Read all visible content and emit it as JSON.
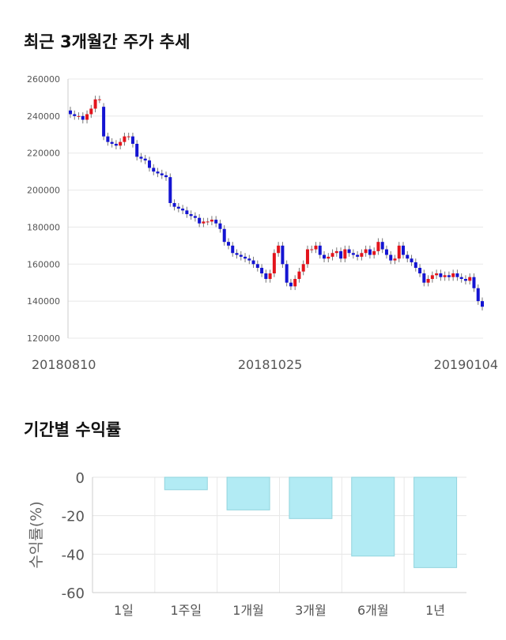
{
  "chart_data": [
    {
      "type": "candlestick",
      "title": "최근 3개월간 주가 추세",
      "categories": [
        "20180810",
        null,
        null,
        null,
        null,
        null,
        null,
        null,
        null,
        null,
        null,
        null,
        null,
        null,
        null,
        null,
        null,
        null,
        null,
        null,
        null,
        null,
        null,
        null,
        null,
        null,
        null,
        null,
        null,
        null,
        null,
        null,
        null,
        null,
        null,
        null,
        null,
        null,
        null,
        null,
        null,
        null,
        null,
        null,
        null,
        null,
        null,
        null,
        "20181025",
        null,
        null,
        null,
        null,
        null,
        null,
        null,
        null,
        null,
        null,
        null,
        null,
        null,
        null,
        null,
        null,
        null,
        null,
        null,
        null,
        null,
        null,
        null,
        null,
        null,
        null,
        null,
        null,
        null,
        null,
        null,
        null,
        null,
        null,
        null,
        null,
        null,
        null,
        null,
        null,
        null,
        null,
        null,
        null,
        null,
        null,
        null,
        null,
        null,
        null,
        "20190104"
      ],
      "open": [
        243000,
        241000,
        240000,
        240000,
        238000,
        241000,
        244000,
        249000,
        245000,
        229000,
        226000,
        225000,
        224000,
        226000,
        229000,
        229000,
        225000,
        218000,
        217000,
        216000,
        212000,
        210000,
        209000,
        208000,
        207000,
        193000,
        191000,
        190000,
        189000,
        187000,
        186000,
        185000,
        182000,
        183000,
        183000,
        184000,
        182000,
        179000,
        172000,
        170000,
        166000,
        165000,
        164000,
        163000,
        162000,
        160000,
        158000,
        155000,
        152000,
        155000,
        166000,
        170000,
        160000,
        150000,
        148000,
        152000,
        156000,
        160000,
        168000,
        168000,
        170000,
        165000,
        163000,
        164000,
        166000,
        167000,
        163000,
        168000,
        166000,
        165000,
        164000,
        166000,
        168000,
        165000,
        167000,
        172000,
        168000,
        165000,
        162000,
        163000,
        170000,
        165000,
        163000,
        161000,
        158000,
        155000,
        150000,
        152000,
        154000,
        155000,
        153000,
        154000,
        153000,
        155000,
        153000,
        152000,
        151000,
        153000,
        147000,
        140000
      ],
      "close": [
        241000,
        240000,
        240000,
        238000,
        241000,
        244000,
        249000,
        249000,
        229000,
        226000,
        225000,
        224000,
        226000,
        229000,
        229000,
        225000,
        218000,
        217000,
        216000,
        212000,
        210000,
        209000,
        208000,
        207000,
        193000,
        191000,
        190000,
        189000,
        187000,
        186000,
        185000,
        182000,
        183000,
        183000,
        184000,
        182000,
        179000,
        172000,
        170000,
        166000,
        165000,
        164000,
        163000,
        162000,
        160000,
        158000,
        155000,
        152000,
        155000,
        166000,
        170000,
        160000,
        150000,
        148000,
        152000,
        156000,
        160000,
        168000,
        168000,
        170000,
        165000,
        163000,
        164000,
        166000,
        167000,
        163000,
        168000,
        166000,
        165000,
        164000,
        166000,
        168000,
        165000,
        167000,
        172000,
        168000,
        165000,
        162000,
        163000,
        170000,
        165000,
        163000,
        161000,
        158000,
        155000,
        150000,
        152000,
        154000,
        155000,
        153000,
        154000,
        153000,
        155000,
        153000,
        152000,
        151000,
        153000,
        147000,
        140000,
        137000
      ],
      "high": [
        245000,
        243000,
        242000,
        242000,
        243000,
        246000,
        251000,
        251000,
        247000,
        231000,
        228000,
        227000,
        228000,
        231000,
        231000,
        231000,
        227000,
        220000,
        219000,
        218000,
        214000,
        212000,
        211000,
        210000,
        209000,
        195000,
        193000,
        192000,
        191000,
        189000,
        188000,
        187000,
        185000,
        185000,
        186000,
        186000,
        184000,
        181000,
        174000,
        172000,
        168000,
        167000,
        166000,
        165000,
        164000,
        162000,
        160000,
        157000,
        157000,
        168000,
        172000,
        172000,
        162000,
        152000,
        154000,
        158000,
        162000,
        170000,
        170000,
        172000,
        172000,
        167000,
        166000,
        168000,
        169000,
        169000,
        170000,
        170000,
        168000,
        167000,
        168000,
        170000,
        170000,
        169000,
        174000,
        174000,
        170000,
        167000,
        165000,
        172000,
        172000,
        167000,
        165000,
        163000,
        160000,
        157000,
        154000,
        156000,
        157000,
        157000,
        156000,
        156000,
        157000,
        157000,
        155000,
        154000,
        155000,
        155000,
        149000,
        142000
      ],
      "low": [
        239000,
        238000,
        238000,
        236000,
        236000,
        239000,
        242000,
        247000,
        227000,
        224000,
        223000,
        222000,
        222000,
        224000,
        227000,
        223000,
        216000,
        215000,
        214000,
        210000,
        208000,
        207000,
        206000,
        205000,
        191000,
        189000,
        188000,
        187000,
        185000,
        184000,
        183000,
        180000,
        180000,
        181000,
        181000,
        180000,
        177000,
        170000,
        168000,
        164000,
        163000,
        162000,
        161000,
        160000,
        158000,
        156000,
        153000,
        150000,
        150000,
        153000,
        164000,
        158000,
        148000,
        146000,
        146000,
        150000,
        154000,
        158000,
        166000,
        166000,
        163000,
        161000,
        161000,
        162000,
        164000,
        161000,
        161000,
        164000,
        163000,
        162000,
        162000,
        164000,
        163000,
        163000,
        165000,
        166000,
        163000,
        160000,
        160000,
        161000,
        163000,
        161000,
        159000,
        156000,
        153000,
        148000,
        148000,
        150000,
        152000,
        151000,
        151000,
        151000,
        151000,
        151000,
        150000,
        149000,
        149000,
        145000,
        138000,
        135000
      ],
      "up_color": "#e3141c",
      "down_color": "#1414d2",
      "ylim": [
        120000,
        260000
      ],
      "yticks": [
        120000,
        140000,
        160000,
        180000,
        200000,
        220000,
        240000,
        260000
      ],
      "grid": true
    },
    {
      "type": "bar",
      "title": "기간별 수익률",
      "ylabel": "수익률(%)",
      "categories": [
        "1일",
        "1주일",
        "1개월",
        "3개월",
        "6개월",
        "1년"
      ],
      "values": [
        0,
        -6.5,
        -17,
        -21.5,
        -41,
        -47
      ],
      "color": "#b2ebf4",
      "ylim": [
        -60,
        0
      ],
      "yticks": [
        0,
        -20,
        -40,
        -60
      ],
      "grid": true
    }
  ]
}
